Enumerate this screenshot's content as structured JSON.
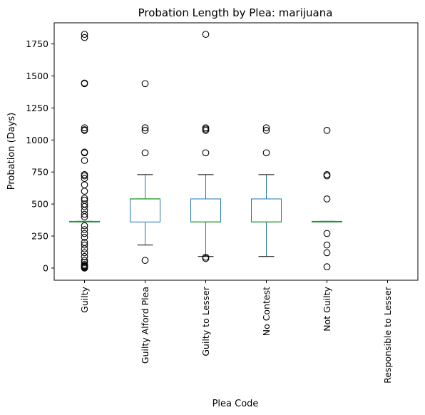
{
  "chart_data": {
    "type": "box",
    "title": "Probation Length by Plea: marijuana",
    "xlabel": "Plea Code",
    "ylabel": "Probation (Days)",
    "ylim": [
      -95,
      1915
    ],
    "yticks": [
      0,
      250,
      500,
      750,
      1000,
      1250,
      1500,
      1750
    ],
    "categories": [
      "Guilty",
      "Guilty Alford Plea",
      "Guilty to Lesser",
      "No Contest",
      "Not Guilty",
      "Responsible to Lesser"
    ],
    "grid": false,
    "colors": {
      "box": "#1f77b4",
      "median": "#2ca02c",
      "whisker_cap": "#000000",
      "flier": "#000000"
    },
    "boxes": [
      {
        "category": "Guilty",
        "q1": 360,
        "median": 360,
        "q3": 365,
        "whisker_low": 360,
        "whisker_high": 365,
        "fliers": [
          0,
          5,
          10,
          15,
          20,
          30,
          45,
          60,
          90,
          120,
          150,
          180,
          200,
          240,
          270,
          300,
          330,
          400,
          420,
          450,
          480,
          500,
          530,
          545,
          600,
          650,
          700,
          720,
          730,
          840,
          900,
          905,
          1075,
          1080,
          1095,
          1440,
          1445,
          1800,
          1825
        ]
      },
      {
        "category": "Guilty Alford Plea",
        "q1": 360,
        "median": 540,
        "q3": 540,
        "whisker_low": 180,
        "whisker_high": 730,
        "fliers": [
          60,
          900,
          1075,
          1095,
          1440
        ]
      },
      {
        "category": "Guilty to Lesser",
        "q1": 360,
        "median": 360,
        "q3": 540,
        "whisker_low": 90,
        "whisker_high": 730,
        "fliers": [
          75,
          85,
          900,
          1075,
          1085,
          1095,
          1825
        ]
      },
      {
        "category": "No Contest",
        "q1": 360,
        "median": 360,
        "q3": 540,
        "whisker_low": 90,
        "whisker_high": 730,
        "fliers": [
          900,
          1075,
          1095
        ]
      },
      {
        "category": "Not Guilty",
        "q1": 360,
        "median": 360,
        "q3": 365,
        "whisker_low": 360,
        "whisker_high": 365,
        "fliers": [
          10,
          120,
          180,
          270,
          540,
          720,
          730,
          1075
        ]
      },
      {
        "category": "Responsible to Lesser",
        "q1": null,
        "median": null,
        "q3": null,
        "whisker_low": null,
        "whisker_high": null,
        "fliers": []
      }
    ]
  }
}
